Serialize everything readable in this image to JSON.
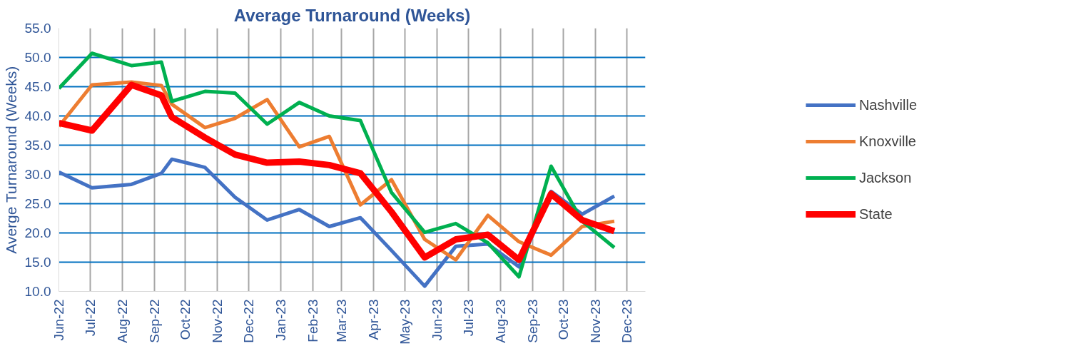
{
  "chart_data": {
    "type": "line",
    "title": "Average Turnaround (Weeks)",
    "ylabel": "Averge Turnaround (Weeks)",
    "x": [
      "2022-06-01",
      "2022-07-03",
      "2022-08-10",
      "2022-09-08",
      "2022-09-18",
      "2022-10-20",
      "2022-11-18",
      "2022-12-19",
      "2023-01-19",
      "2023-02-17",
      "2023-03-19",
      "2023-04-18",
      "2023-05-20",
      "2023-06-19",
      "2023-07-20",
      "2023-08-19",
      "2023-09-19",
      "2023-10-19",
      "2023-11-19"
    ],
    "series": [
      {
        "name": "Nashville",
        "color": "#4472c4",
        "values": [
          30.4,
          27.7,
          28.3,
          30.2,
          32.6,
          31.2,
          26.1,
          22.2,
          24.0,
          21.1,
          22.6,
          17.0,
          10.9,
          17.7,
          18.1,
          14.2,
          27.1,
          23.2,
          26.3
        ]
      },
      {
        "name": "Knoxville",
        "color": "#ed7d31",
        "values": [
          38.2,
          45.3,
          45.8,
          45.2,
          42.0,
          38.0,
          39.6,
          42.8,
          34.7,
          36.5,
          24.8,
          29.1,
          18.9,
          15.4,
          23.0,
          18.5,
          16.2,
          21.1,
          22.0
        ]
      },
      {
        "name": "Jackson",
        "color": "#00b050",
        "values": [
          44.7,
          50.7,
          48.6,
          49.2,
          42.5,
          44.2,
          43.9,
          38.6,
          42.3,
          40.0,
          39.2,
          26.9,
          20.1,
          21.6,
          18.3,
          12.5,
          31.4,
          22.0,
          17.5
        ]
      },
      {
        "name": "State",
        "color": "#ff0000",
        "values": [
          38.8,
          37.5,
          45.3,
          43.5,
          39.8,
          36.3,
          33.4,
          32.0,
          32.2,
          31.6,
          30.2,
          23.6,
          15.8,
          18.9,
          19.7,
          15.4,
          26.7,
          22.2,
          20.3
        ]
      }
    ],
    "xlim": [
      "2022-06-01",
      "2023-12-19"
    ],
    "xticks": [
      {
        "value": "2022-06-01",
        "label": "Jun-22"
      },
      {
        "value": "2022-07-01",
        "label": "Jul-22"
      },
      {
        "value": "2022-08-01",
        "label": "Aug-22"
      },
      {
        "value": "2022-09-01",
        "label": "Sep-22"
      },
      {
        "value": "2022-10-01",
        "label": "Oct-22"
      },
      {
        "value": "2022-11-01",
        "label": "Nov-22"
      },
      {
        "value": "2022-12-01",
        "label": "Dec-22"
      },
      {
        "value": "2023-01-01",
        "label": "Jan-23"
      },
      {
        "value": "2023-02-01",
        "label": "Feb-23"
      },
      {
        "value": "2023-03-01",
        "label": "Mar-23"
      },
      {
        "value": "2023-04-01",
        "label": "Apr-23"
      },
      {
        "value": "2023-05-01",
        "label": "May-23"
      },
      {
        "value": "2023-06-01",
        "label": "Jun-23"
      },
      {
        "value": "2023-07-01",
        "label": "Jul-23"
      },
      {
        "value": "2023-08-01",
        "label": "Aug-23"
      },
      {
        "value": "2023-09-01",
        "label": "Sep-23"
      },
      {
        "value": "2023-10-01",
        "label": "Oct-23"
      },
      {
        "value": "2023-11-01",
        "label": "Nov-23"
      },
      {
        "value": "2023-12-01",
        "label": "Dec-23"
      }
    ],
    "ylim": [
      10,
      55
    ],
    "yticks": [
      {
        "value": 10,
        "label": "10.0"
      },
      {
        "value": 15,
        "label": "15.0"
      },
      {
        "value": 20,
        "label": "20.0"
      },
      {
        "value": 25,
        "label": "25.0"
      },
      {
        "value": 30,
        "label": "30.0"
      },
      {
        "value": 35,
        "label": "35.0"
      },
      {
        "value": 40,
        "label": "40.0"
      },
      {
        "value": 45,
        "label": "45.0"
      },
      {
        "value": 50,
        "label": "50.0"
      },
      {
        "value": 55,
        "label": "55.0"
      }
    ],
    "grid": true,
    "legend": "right",
    "marker": "none",
    "line_style": "solid"
  }
}
